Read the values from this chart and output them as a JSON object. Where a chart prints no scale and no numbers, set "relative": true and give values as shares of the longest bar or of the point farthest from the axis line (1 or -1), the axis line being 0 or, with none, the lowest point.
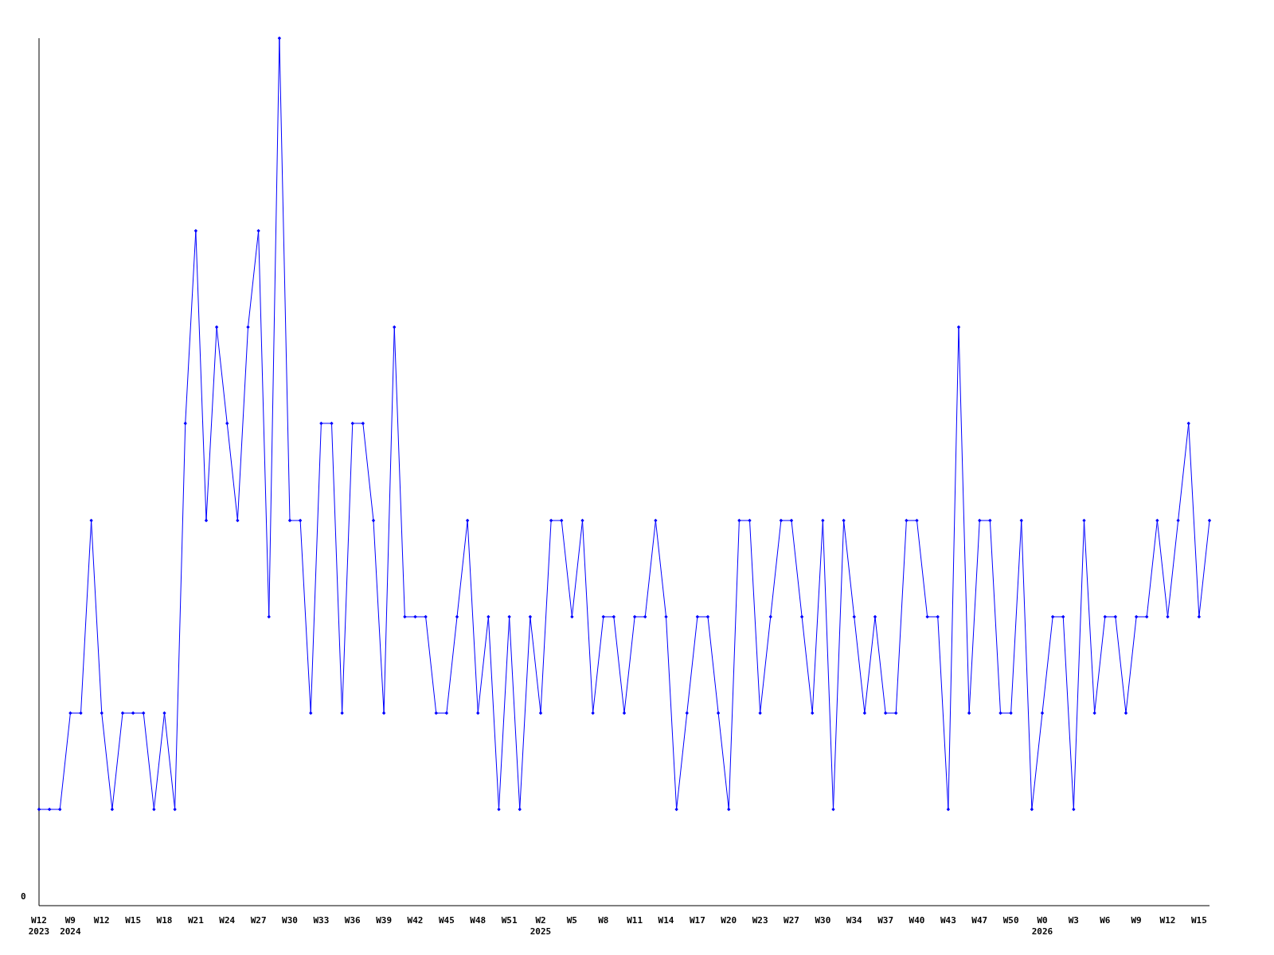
{
  "chart_data": {
    "type": "line",
    "relative": true,
    "marker": "diamond",
    "line_style": "solid",
    "categories": [
      "W12\n2023",
      null,
      null,
      "W9\n2024",
      null,
      null,
      "W12",
      null,
      null,
      "W15",
      null,
      null,
      "W18",
      null,
      null,
      "W21",
      null,
      null,
      "W24",
      null,
      null,
      "W27",
      null,
      null,
      "W30",
      null,
      null,
      "W33",
      null,
      null,
      "W36",
      null,
      null,
      "W39",
      null,
      null,
      "W42",
      null,
      null,
      "W45",
      null,
      null,
      "W48",
      null,
      null,
      "W51",
      null,
      null,
      "W2\n2025",
      null,
      null,
      "W5",
      null,
      null,
      "W8",
      null,
      null,
      "W11",
      null,
      null,
      "W14",
      null,
      null,
      "W17",
      null,
      null,
      "W20",
      null,
      null,
      "W23",
      null,
      null,
      "W27",
      null,
      null,
      "W30",
      null,
      null,
      "W34",
      null,
      null,
      "W37",
      null,
      null,
      "W40",
      null,
      null,
      "W43",
      null,
      null,
      "W47",
      null,
      null,
      "W50",
      null,
      null,
      "W0\n2026",
      null,
      null,
      "W3",
      null,
      null,
      "W6",
      null,
      null,
      "W9",
      null,
      null,
      "W12",
      null,
      null,
      "W15",
      null
    ],
    "series": [
      {
        "color": "#0000ff",
        "values": [
          0.111,
          0.111,
          0.111,
          0.222,
          0.222,
          0.444,
          0.222,
          0.111,
          0.222,
          0.222,
          0.222,
          0.111,
          0.222,
          0.111,
          0.556,
          0.778,
          0.444,
          0.667,
          0.556,
          0.444,
          0.667,
          0.778,
          0.333,
          1,
          0.444,
          0.444,
          0.222,
          0.556,
          0.556,
          0.222,
          0.556,
          0.556,
          0.444,
          0.222,
          0.667,
          0.333,
          0.333,
          0.333,
          0.222,
          0.222,
          0.333,
          0.444,
          0.222,
          0.333,
          0.111,
          0.333,
          0.111,
          0.333,
          0.222,
          0.444,
          0.444,
          0.333,
          0.444,
          0.222,
          0.333,
          0.333,
          0.222,
          0.333,
          0.333,
          0.444,
          0.333,
          0.111,
          0.222,
          0.333,
          0.333,
          0.222,
          0.111,
          0.444,
          0.444,
          0.222,
          0.333,
          0.444,
          0.444,
          0.333,
          0.222,
          0.444,
          0.111,
          0.444,
          0.333,
          0.222,
          0.333,
          0.222,
          0.222,
          0.444,
          0.444,
          0.333,
          0.333,
          0.111,
          0.667,
          0.222,
          0.444,
          0.444,
          0.222,
          0.222,
          0.444,
          0.111,
          0.222,
          0.333,
          0.333,
          0.111,
          0.444,
          0.222,
          0.333,
          0.333,
          0.222,
          0.333,
          0.333,
          0.444,
          0.333,
          0.444,
          0.556,
          0.333,
          0.444
        ]
      }
    ],
    "annotations": [
      "0"
    ]
  }
}
